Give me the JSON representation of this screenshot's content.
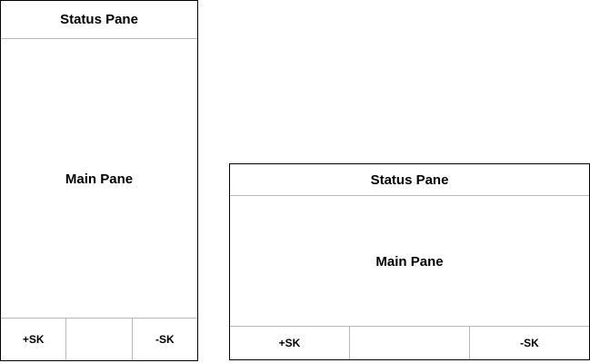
{
  "portrait": {
    "status_pane": "Status Pane",
    "main_pane": "Main Pane",
    "softkeys": {
      "left": "+SK",
      "middle": "",
      "right": "-SK"
    }
  },
  "landscape": {
    "status_pane": "Status Pane",
    "main_pane": "Main Pane",
    "softkeys": {
      "left": "+SK",
      "middle": "",
      "right": "-SK"
    }
  },
  "colors": {
    "border": "#000000",
    "divider": "#b9b9b9",
    "background": "#ffffff"
  }
}
